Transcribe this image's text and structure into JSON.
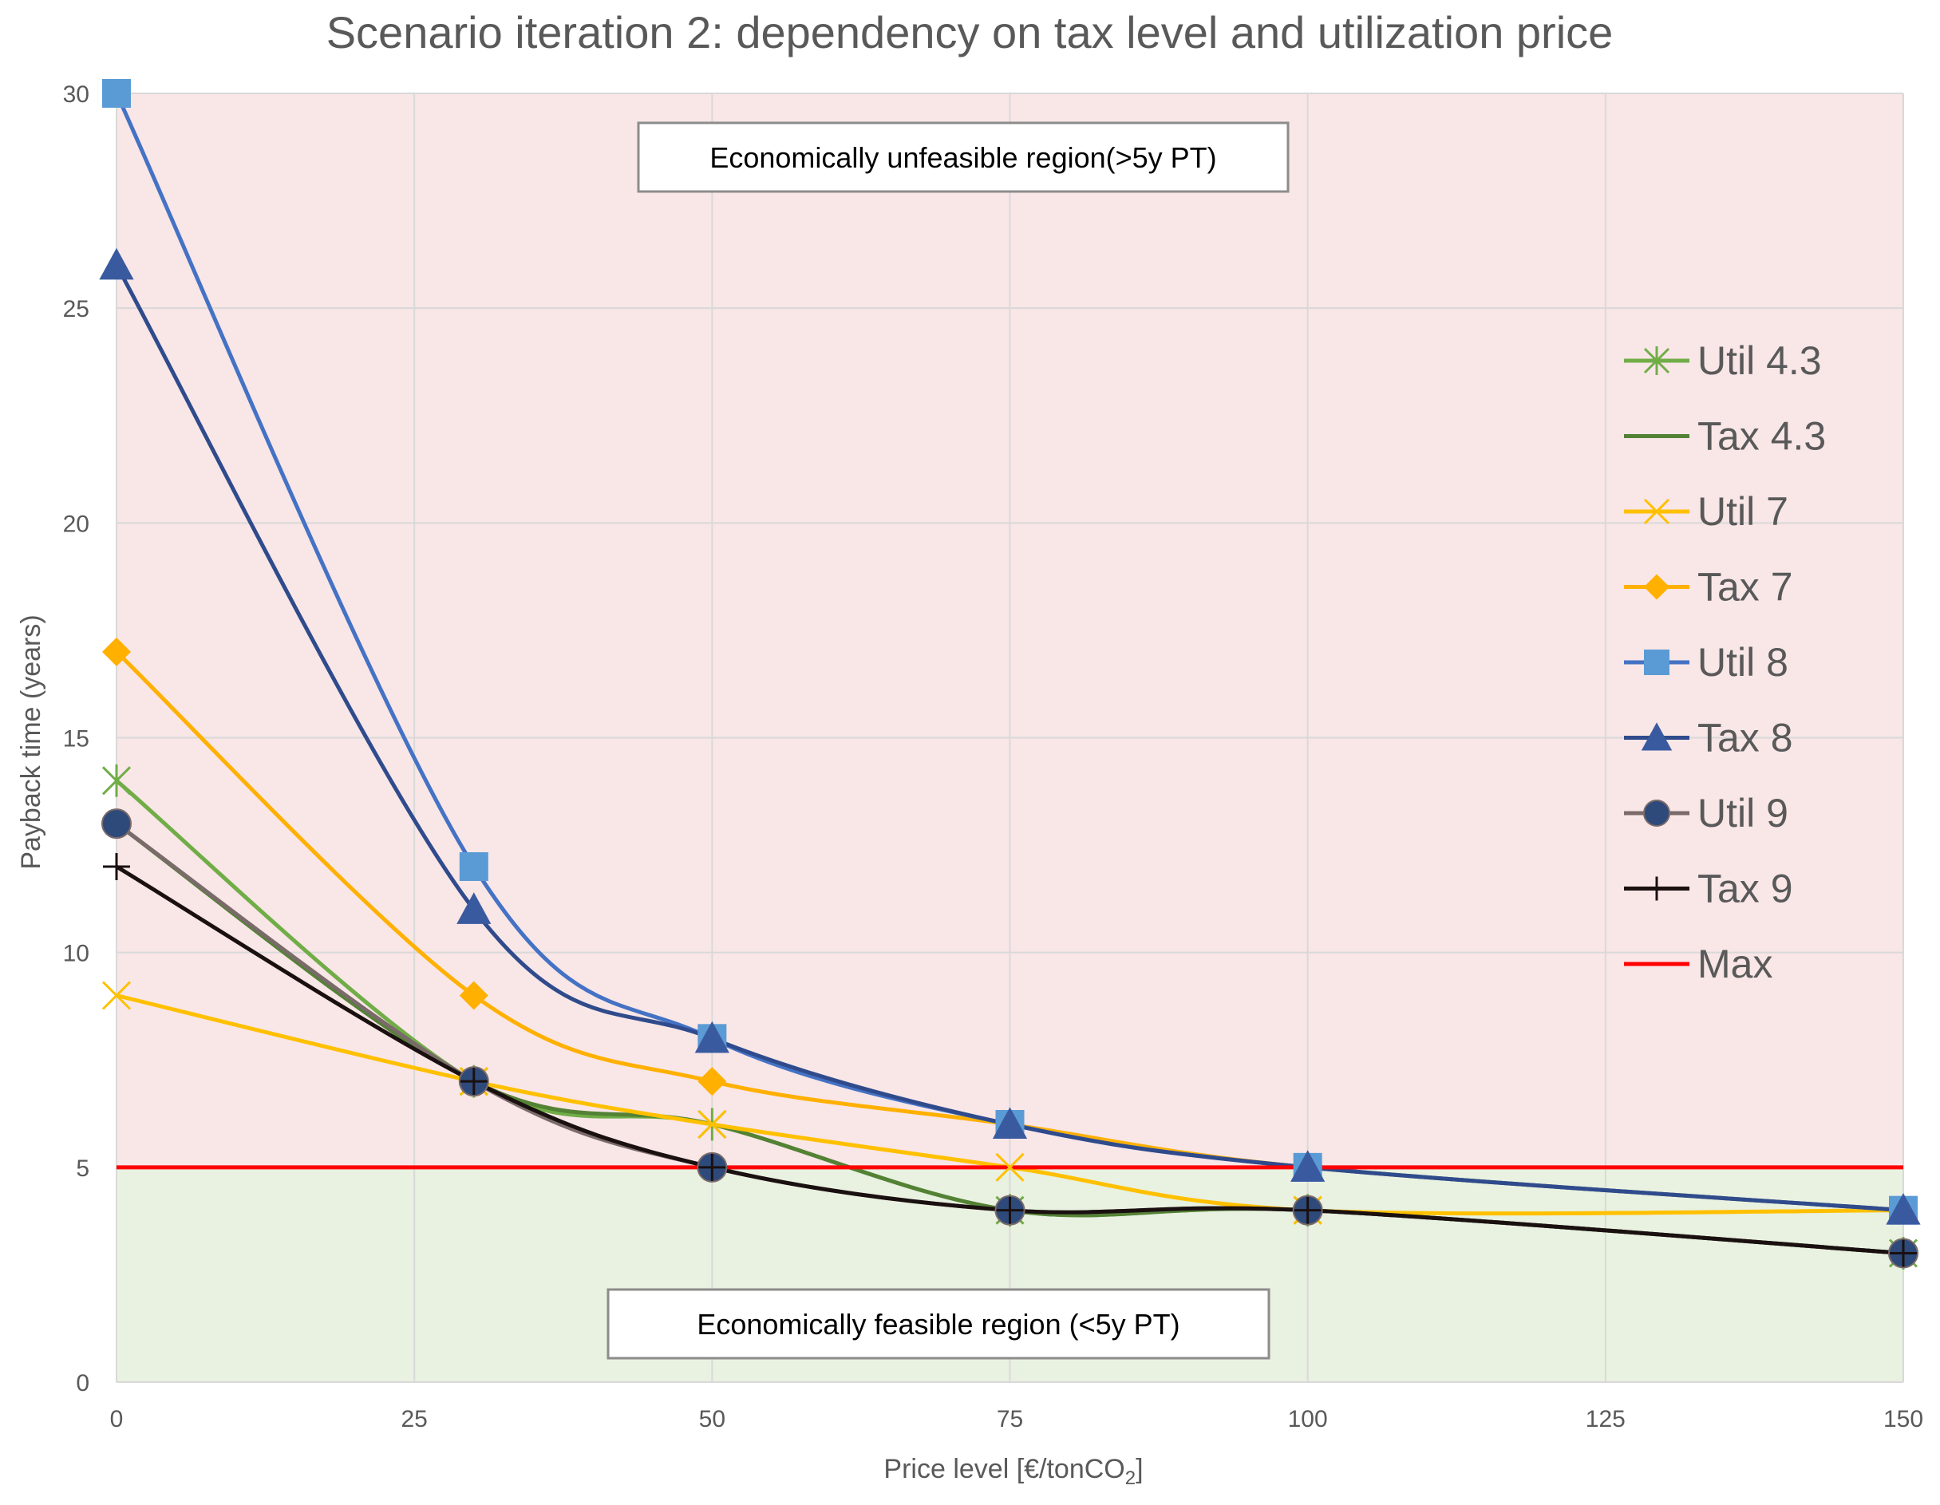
{
  "chart_data": {
    "type": "line",
    "title": "Scenario iteration 2: dependency on tax level and utilization price",
    "xlabel": "Price level [€/tonCO",
    "xlabel_sub": "2",
    "xlabel_end": "]",
    "ylabel": "Payback time (years)",
    "categories": [
      "0",
      "25",
      "50",
      "75",
      "100",
      "125",
      "150"
    ],
    "x": [
      0,
      30,
      50,
      75,
      100,
      150
    ],
    "xlim": [
      0,
      150
    ],
    "ylim": [
      0,
      30
    ],
    "yticks": [
      0,
      5,
      10,
      15,
      20,
      25,
      30
    ],
    "grid": true,
    "legend_position": "right",
    "regions": {
      "unfeasible": {
        "label": "Economically unfeasible region(>5y PT)",
        "color": "#f9e6e7"
      },
      "feasible": {
        "label": "Economically feasible region (<5y PT)",
        "color": "#e9f1e1"
      }
    },
    "series": [
      {
        "name": "Util 4.3",
        "color": "#70ad47",
        "marker": "star",
        "values": [
          14,
          7,
          6,
          4,
          4,
          3
        ]
      },
      {
        "name": "Tax 4.3",
        "color": "#548235",
        "marker": "none",
        "values": [
          13,
          7,
          6,
          4,
          4,
          3
        ]
      },
      {
        "name": "Util 7",
        "color": "#ffc000",
        "marker": "x",
        "values": [
          9,
          7,
          6,
          5,
          4,
          4
        ]
      },
      {
        "name": "Tax 7",
        "color": "#ffb000",
        "marker": "diamond",
        "values": [
          17,
          9,
          7,
          6,
          5,
          4
        ]
      },
      {
        "name": "Util 8",
        "color": "#4472c4",
        "marker": "square",
        "markerColor": "#5b9bd5",
        "values": [
          30,
          12,
          8,
          6,
          5,
          4
        ]
      },
      {
        "name": "Tax 8",
        "color": "#2f4b8c",
        "marker": "triangle",
        "markerColor": "#3a5aa0",
        "values": [
          26,
          11,
          8,
          6,
          5,
          4
        ]
      },
      {
        "name": "Util 9",
        "color": "#7a6a6a",
        "marker": "circle",
        "markerColor": "#2e4a7a",
        "values": [
          13,
          7,
          5,
          4,
          4,
          3
        ]
      },
      {
        "name": "Tax 9",
        "color": "#1a1010",
        "marker": "plus",
        "values": [
          12,
          7,
          5,
          4,
          4,
          3
        ]
      },
      {
        "name": "Max",
        "color": "#ff0000",
        "marker": "none",
        "values": [
          5,
          5,
          5,
          5,
          5,
          5
        ]
      }
    ]
  }
}
